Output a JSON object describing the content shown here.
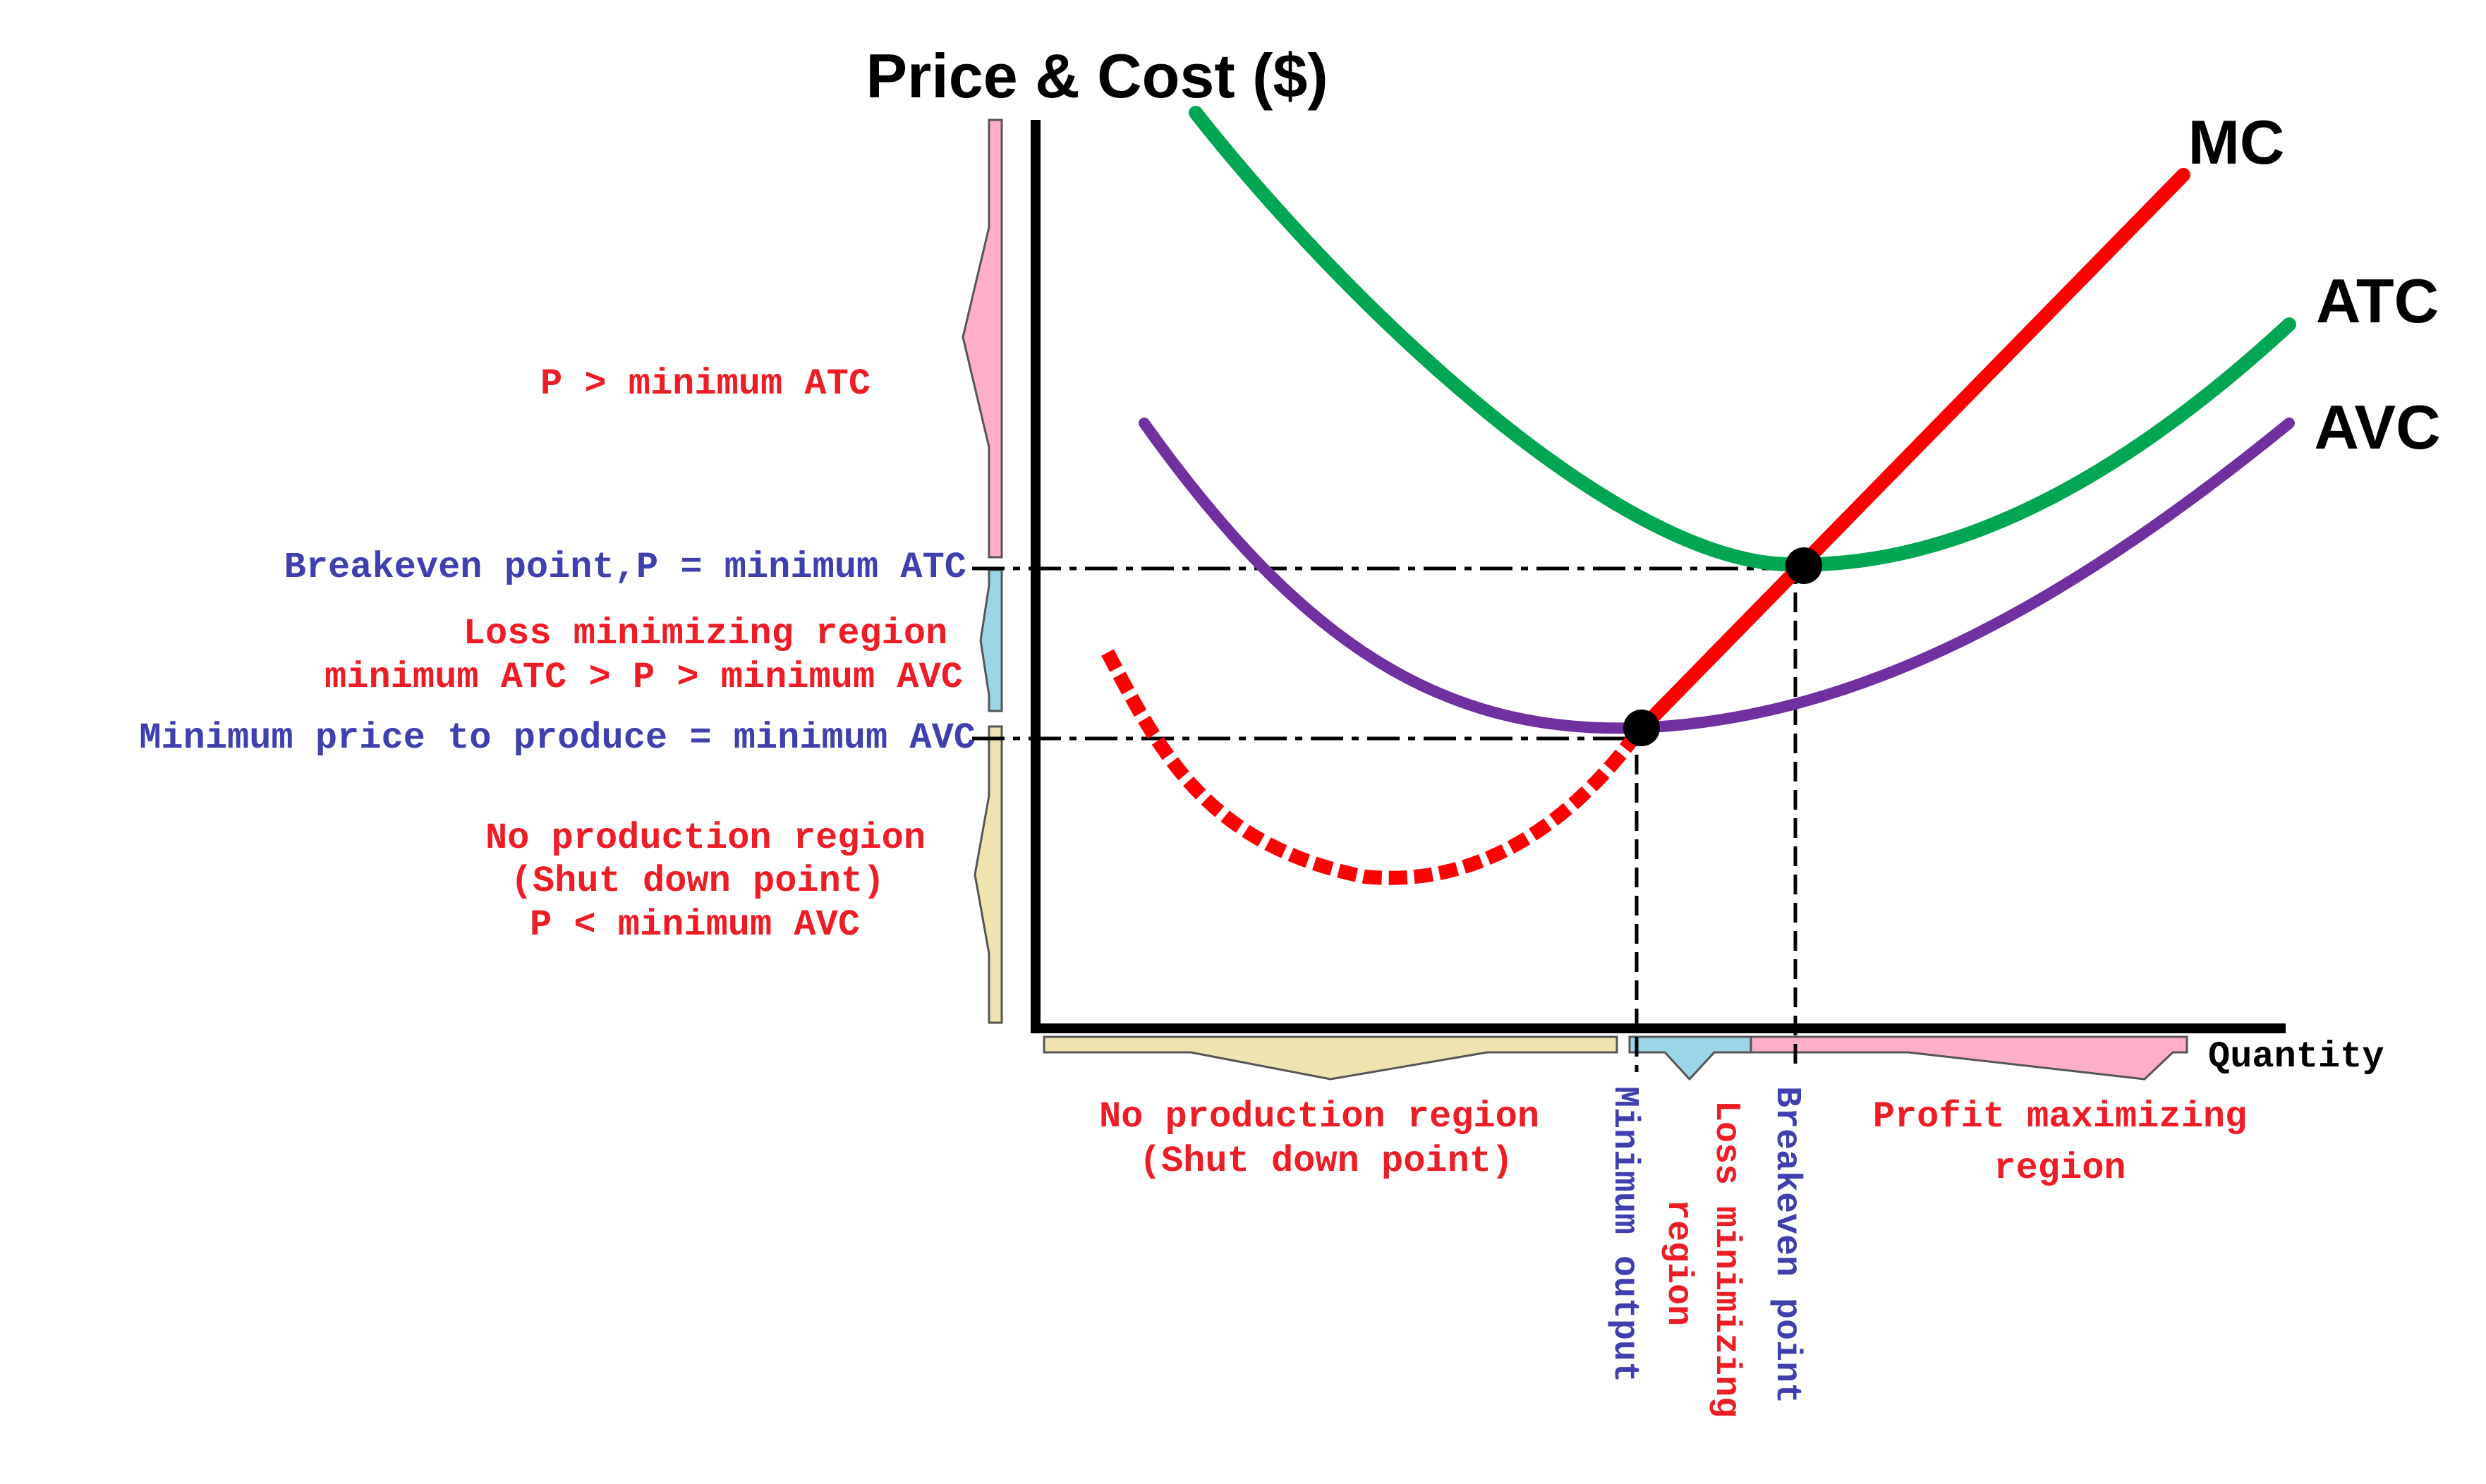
{
  "title": "Price & Cost ($)",
  "x_axis_label": "Quantity",
  "curves": {
    "mc": {
      "label": "MC",
      "color": "#ff0000"
    },
    "atc": {
      "label": "ATC",
      "color": "#00a651"
    },
    "avc": {
      "label": "AVC",
      "color": "#7030a0"
    }
  },
  "left_labels": {
    "profit": "P > minimum ATC",
    "breakeven": "Breakeven point,P = minimum ATC",
    "loss_line1": "Loss minimizing region",
    "loss_line2": "minimum ATC > P > minimum AVC",
    "min_price": "Minimum price to produce = minimum AVC",
    "noprod_line1": "No production region",
    "noprod_line2": "(Shut down point)",
    "noprod_line3": "P < minimum AVC"
  },
  "bottom_labels": {
    "noprod_line1": "No production region",
    "noprod_line2": "(Shut down point)",
    "min_output": "Minimum output",
    "loss_line1": "Loss minimizing",
    "loss_line2": "region",
    "breakeven": "Breakeven point",
    "profit_line1": "Profit maximizing",
    "profit_line2": "region"
  },
  "colors": {
    "red_text": "#ee1c25",
    "blue_text": "#3f3fb0",
    "pink_region": "#ffaec9",
    "blue_region": "#9bd6e8",
    "tan_region": "#efe4b0"
  }
}
